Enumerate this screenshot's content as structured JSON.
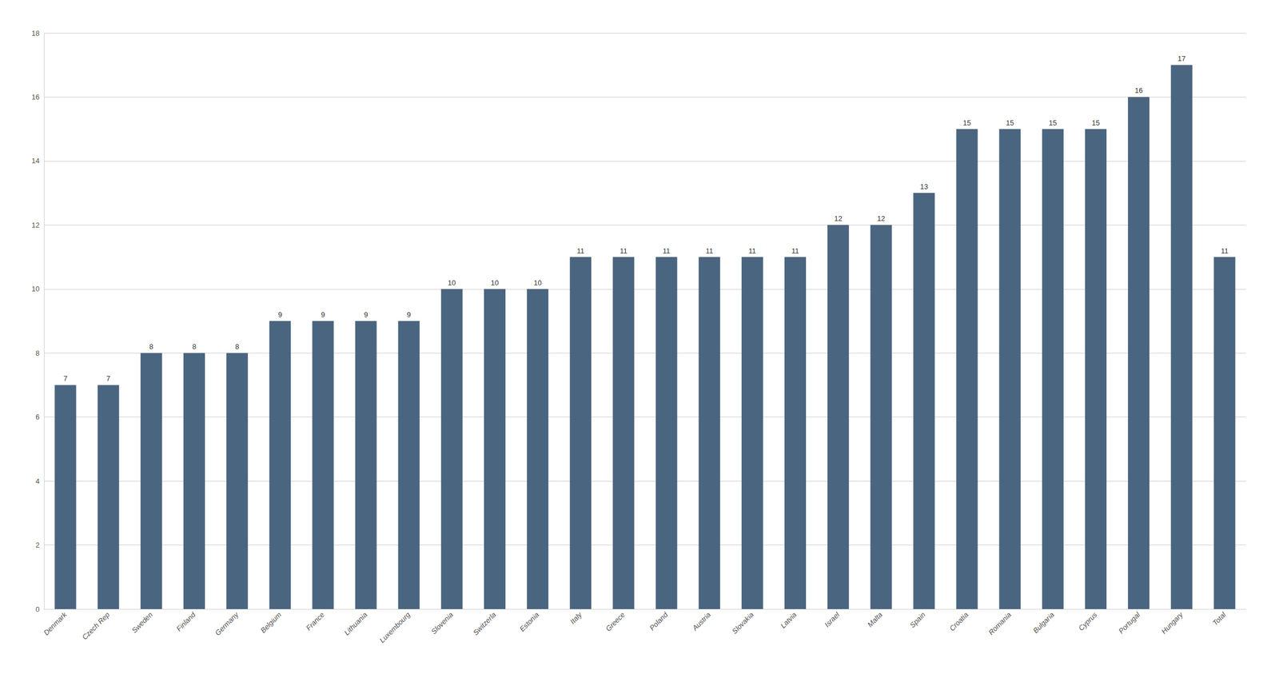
{
  "chart_data": {
    "type": "bar",
    "categories": [
      "Denmark",
      "Czech Rep",
      "Sweden",
      "Finland",
      "Germany",
      "Belgium",
      "France",
      "Lithuania",
      "Luxembourg",
      "Slovenia",
      "Switzerla",
      "Estonia",
      "Italy",
      "Greece",
      "Poland",
      "Austria",
      "Slovakia",
      "Latvia",
      "Israel",
      "Malta",
      "Spain",
      "Croatia",
      "Romania",
      "Bulgaria",
      "Cyprus",
      "Portugal",
      "Hungary",
      "Total"
    ],
    "values": [
      7,
      7,
      8,
      8,
      8,
      9,
      9,
      9,
      9,
      10,
      10,
      10,
      11,
      11,
      11,
      11,
      11,
      11,
      12,
      12,
      13,
      15,
      15,
      15,
      15,
      16,
      17,
      11
    ],
    "color": "#4a6580",
    "ylim": [
      0,
      18
    ],
    "yticks": [
      0,
      2,
      4,
      6,
      8,
      10,
      12,
      14,
      16,
      18
    ],
    "grid": true,
    "data_labels": true
  }
}
